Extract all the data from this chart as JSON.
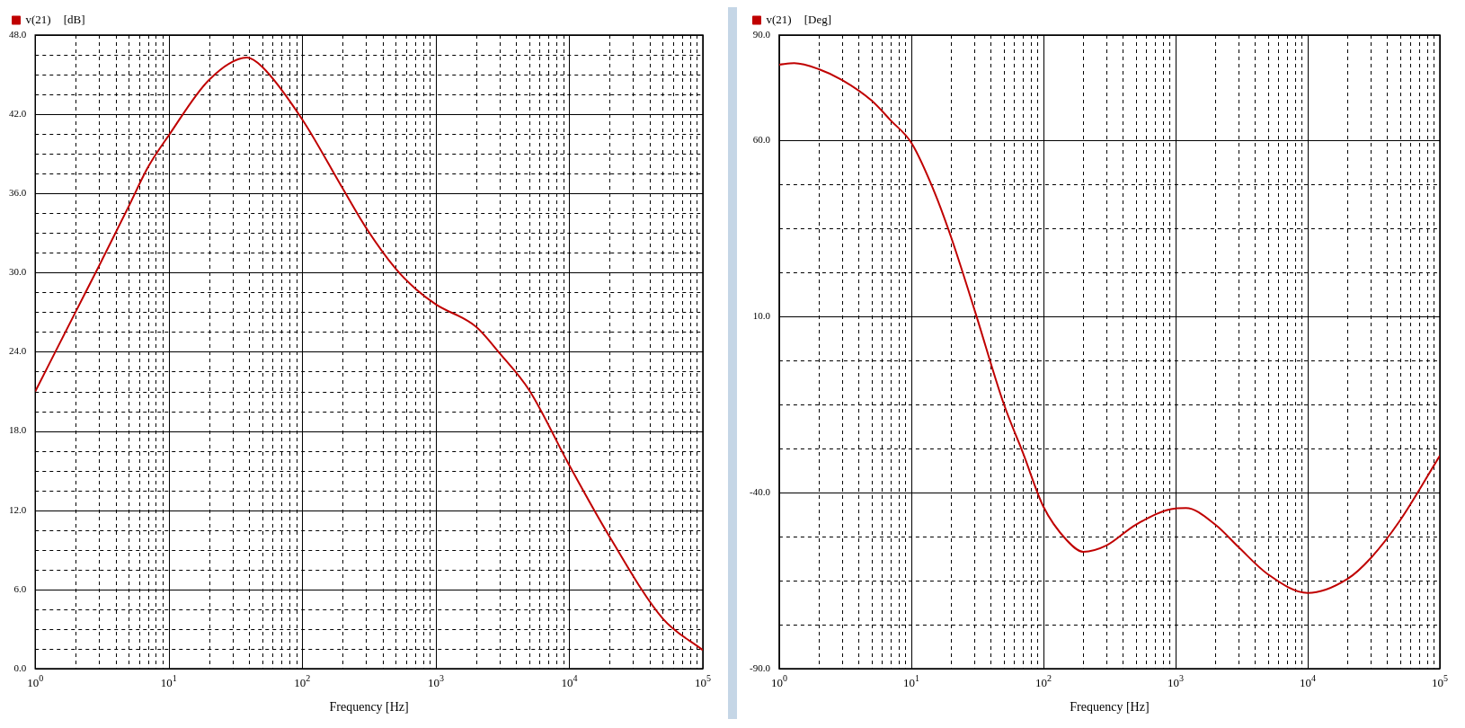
{
  "chart_data": [
    {
      "type": "line",
      "xlabel": "Frequency [Hz]",
      "ylabel": "[dB]",
      "log": "x",
      "grid": true,
      "legend": "top left",
      "marker": "none",
      "line_style": "solid",
      "x": [
        1,
        2,
        3,
        5,
        7,
        10,
        20,
        38.6,
        50,
        100,
        200,
        300,
        500,
        700,
        1000,
        2000,
        3000,
        5000,
        10000,
        20000,
        50000,
        100000
      ],
      "series": [
        {
          "name": "v(21)",
          "color": "#c00000",
          "values": [
            21.0,
            27.0,
            30.5,
            35.0,
            38.0,
            40.4,
            44.6,
            46.3,
            45.6,
            41.6,
            36.4,
            33.4,
            30.3,
            28.8,
            27.6,
            25.9,
            23.9,
            21.1,
            15.4,
            10.0,
            3.8,
            1.4
          ]
        }
      ],
      "xlim": [
        1,
        100000
      ],
      "xticks": [
        {
          "value": 1,
          "label": "10$^{0}$"
        },
        {
          "value": 2,
          "label": null
        },
        {
          "value": 3,
          "label": null
        },
        {
          "value": 4,
          "label": null
        },
        {
          "value": 5,
          "label": null
        },
        {
          "value": 6,
          "label": null
        },
        {
          "value": 7,
          "label": null
        },
        {
          "value": 8,
          "label": null
        },
        {
          "value": 9,
          "label": null
        },
        {
          "value": 10,
          "label": "10$^{1}$"
        },
        {
          "value": 20,
          "label": null
        },
        {
          "value": 30,
          "label": null
        },
        {
          "value": 40,
          "label": null
        },
        {
          "value": 50,
          "label": null
        },
        {
          "value": 60,
          "label": null
        },
        {
          "value": 70,
          "label": null
        },
        {
          "value": 80,
          "label": null
        },
        {
          "value": 90,
          "label": null
        },
        {
          "value": 100,
          "label": "10$^{2}$"
        },
        {
          "value": 200,
          "label": null
        },
        {
          "value": 300,
          "label": null
        },
        {
          "value": 400,
          "label": null
        },
        {
          "value": 500,
          "label": null
        },
        {
          "value": 600,
          "label": null
        },
        {
          "value": 700,
          "label": null
        },
        {
          "value": 800,
          "label": null
        },
        {
          "value": 900,
          "label": null
        },
        {
          "value": 1000,
          "label": "10$^{3}$"
        },
        {
          "value": 2000,
          "label": null
        },
        {
          "value": 3000,
          "label": null
        },
        {
          "value": 4000,
          "label": null
        },
        {
          "value": 5000,
          "label": null
        },
        {
          "value": 6000,
          "label": null
        },
        {
          "value": 7000,
          "label": null
        },
        {
          "value": 8000,
          "label": null
        },
        {
          "value": 9000,
          "label": null
        },
        {
          "value": 10000,
          "label": "10$^{4}$"
        },
        {
          "value": 20000,
          "label": null
        },
        {
          "value": 30000,
          "label": null
        },
        {
          "value": 40000,
          "label": null
        },
        {
          "value": 50000,
          "label": null
        },
        {
          "value": 60000,
          "label": null
        },
        {
          "value": 70000,
          "label": null
        },
        {
          "value": 80000,
          "label": null
        },
        {
          "value": 90000,
          "label": null
        },
        {
          "value": 100000,
          "label": "10$^{5}$"
        }
      ],
      "ylim": [
        0,
        48
      ],
      "yticks": [
        {
          "value": 0,
          "label": "0.0"
        },
        {
          "value": 1.5,
          "label": null
        },
        {
          "value": 3,
          "label": null
        },
        {
          "value": 4.5,
          "label": null
        },
        {
          "value": 6,
          "label": "6.0"
        },
        {
          "value": 7.5,
          "label": null
        },
        {
          "value": 9,
          "label": null
        },
        {
          "value": 10.5,
          "label": null
        },
        {
          "value": 12,
          "label": "12.0"
        },
        {
          "value": 13.5,
          "label": null
        },
        {
          "value": 15,
          "label": null
        },
        {
          "value": 16.5,
          "label": null
        },
        {
          "value": 18,
          "label": "18.0"
        },
        {
          "value": 19.5,
          "label": null
        },
        {
          "value": 21,
          "label": null
        },
        {
          "value": 22.5,
          "label": null
        },
        {
          "value": 24,
          "label": "24.0"
        },
        {
          "value": 25.5,
          "label": null
        },
        {
          "value": 27,
          "label": null
        },
        {
          "value": 28.5,
          "label": null
        },
        {
          "value": 30,
          "label": "30.0"
        },
        {
          "value": 31.5,
          "label": null
        },
        {
          "value": 33,
          "label": null
        },
        {
          "value": 34.5,
          "label": null
        },
        {
          "value": 36,
          "label": "36.0"
        },
        {
          "value": 37.5,
          "label": null
        },
        {
          "value": 39,
          "label": null
        },
        {
          "value": 40.5,
          "label": null
        },
        {
          "value": 42,
          "label": "42.0"
        },
        {
          "value": 43.5,
          "label": null
        },
        {
          "value": 45,
          "label": null
        },
        {
          "value": 46.5,
          "label": null
        },
        {
          "value": 48,
          "label": "48.0"
        }
      ]
    },
    {
      "type": "line",
      "xlabel": "Frequency [Hz]",
      "ylabel": "[Deg]",
      "log": "x",
      "grid": true,
      "legend": "top left",
      "marker": "none",
      "line_style": "solid",
      "x": [
        1,
        1.3,
        2,
        3,
        5,
        7,
        10,
        15,
        20,
        30,
        50,
        70,
        100,
        150,
        200,
        300,
        500,
        1000,
        1200,
        2000,
        3000,
        5000,
        10000,
        20000,
        30000,
        50000,
        100000
      ],
      "series": [
        {
          "name": "v(21)",
          "color": "#c00000",
          "values": [
            81.6,
            82.0,
            80.3,
            77.2,
            71.4,
            65.7,
            59.4,
            45.3,
            32.6,
            12.1,
            -14.7,
            -28.7,
            -44.0,
            -53.5,
            -56.8,
            -55.0,
            -49.1,
            -44.5,
            -44.4,
            -49.1,
            -55.5,
            -63.2,
            -68.5,
            -64.5,
            -58.6,
            -47.9,
            -29.5
          ]
        }
      ],
      "xlim": [
        1,
        100000
      ],
      "xticks": [
        {
          "value": 1,
          "label": "10$^{0}$"
        },
        {
          "value": 2,
          "label": null
        },
        {
          "value": 3,
          "label": null
        },
        {
          "value": 4,
          "label": null
        },
        {
          "value": 5,
          "label": null
        },
        {
          "value": 6,
          "label": null
        },
        {
          "value": 7,
          "label": null
        },
        {
          "value": 8,
          "label": null
        },
        {
          "value": 9,
          "label": null
        },
        {
          "value": 10,
          "label": "10$^{1}$"
        },
        {
          "value": 20,
          "label": null
        },
        {
          "value": 30,
          "label": null
        },
        {
          "value": 40,
          "label": null
        },
        {
          "value": 50,
          "label": null
        },
        {
          "value": 60,
          "label": null
        },
        {
          "value": 70,
          "label": null
        },
        {
          "value": 80,
          "label": null
        },
        {
          "value": 90,
          "label": null
        },
        {
          "value": 100,
          "label": "10$^{2}$"
        },
        {
          "value": 200,
          "label": null
        },
        {
          "value": 300,
          "label": null
        },
        {
          "value": 400,
          "label": null
        },
        {
          "value": 500,
          "label": null
        },
        {
          "value": 600,
          "label": null
        },
        {
          "value": 700,
          "label": null
        },
        {
          "value": 800,
          "label": null
        },
        {
          "value": 900,
          "label": null
        },
        {
          "value": 1000,
          "label": "10$^{3}$"
        },
        {
          "value": 2000,
          "label": null
        },
        {
          "value": 3000,
          "label": null
        },
        {
          "value": 4000,
          "label": null
        },
        {
          "value": 5000,
          "label": null
        },
        {
          "value": 6000,
          "label": null
        },
        {
          "value": 7000,
          "label": null
        },
        {
          "value": 8000,
          "label": null
        },
        {
          "value": 9000,
          "label": null
        },
        {
          "value": 10000,
          "label": "10$^{4}$"
        },
        {
          "value": 20000,
          "label": null
        },
        {
          "value": 30000,
          "label": null
        },
        {
          "value": 40000,
          "label": null
        },
        {
          "value": 50000,
          "label": null
        },
        {
          "value": 60000,
          "label": null
        },
        {
          "value": 70000,
          "label": null
        },
        {
          "value": 80000,
          "label": null
        },
        {
          "value": 90000,
          "label": null
        },
        {
          "value": 100000,
          "label": "10$^{5}$"
        }
      ],
      "ylim": [
        -90,
        90
      ],
      "yticks": [
        {
          "value": -90,
          "label": "-90.0"
        },
        {
          "value": -77.5,
          "label": null
        },
        {
          "value": -65,
          "label": null
        },
        {
          "value": -52.5,
          "label": null
        },
        {
          "value": -40,
          "label": "-40.0"
        },
        {
          "value": -27.5,
          "label": null
        },
        {
          "value": -15,
          "label": null
        },
        {
          "value": -2.5,
          "label": null
        },
        {
          "value": 10,
          "label": "10.0"
        },
        {
          "value": 22.5,
          "label": null
        },
        {
          "value": 35,
          "label": null
        },
        {
          "value": 47.5,
          "label": null
        },
        {
          "value": 60,
          "label": "60.0"
        },
        {
          "value": 90,
          "label": "90.0"
        }
      ]
    }
  ]
}
